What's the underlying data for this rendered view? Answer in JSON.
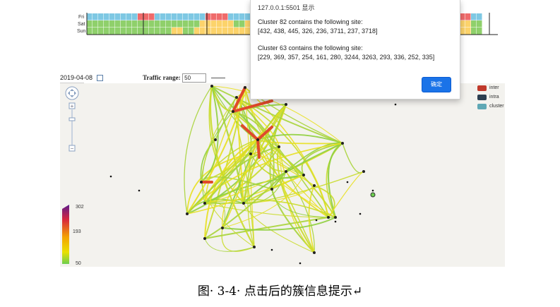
{
  "heatmap": {
    "days": [
      "Fri",
      "Sat",
      "Sun"
    ],
    "colors": {
      "blue": "#7ec8e3",
      "red": "#ef6b6b",
      "green": "#8fd06b",
      "yellow": "#fcd36b"
    }
  },
  "toolbar": {
    "date": "2019-04-08",
    "traffic_label": "Traffic range:",
    "range_min": "50",
    "range_max": "302"
  },
  "dialog": {
    "origin": "127.0.0.1:5501 显示",
    "line1": "Cluster 82 contains the following site:",
    "line2": "[432, 438, 445, 326, 236, 3711, 237, 3718]",
    "line3": "Cluster 63 contains the following site:",
    "line4": "[229, 369, 357, 254, 161, 280, 3244, 3263, 293, 336, 252, 335]",
    "ok_label": "确定"
  },
  "legend": {
    "items": [
      {
        "label": "inter",
        "color": "#c0392b"
      },
      {
        "label": "intra",
        "color": "#2c3e50"
      },
      {
        "label": "cluster",
        "color": "#5fa8b5"
      }
    ]
  },
  "colorbar": {
    "max": "302",
    "mid": "193",
    "min": "50"
  },
  "caption": "图· 3-4· 点击后的簇信息提示↵"
}
